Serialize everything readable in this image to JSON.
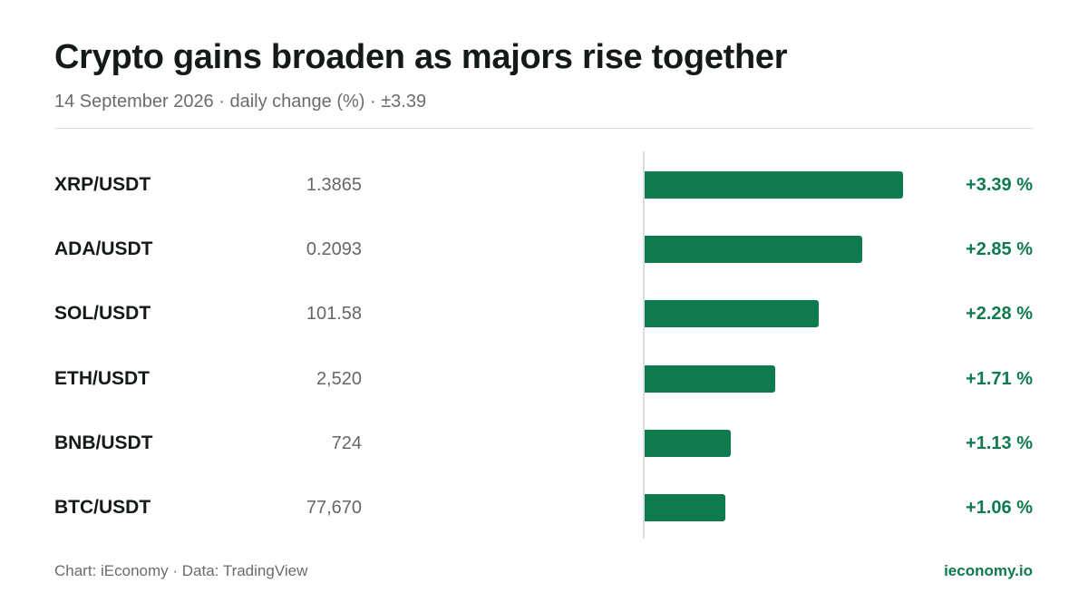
{
  "chart_data": {
    "type": "bar",
    "orientation": "horizontal",
    "title": "Crypto gains broaden as majors rise together",
    "subtitle": "14 September 2026 · daily change (%) · ±3.39",
    "categories": [
      "XRP/USDT",
      "ADA/USDT",
      "SOL/USDT",
      "ETH/USDT",
      "BNB/USDT",
      "BTC/USDT"
    ],
    "prices": [
      "1.3865",
      "0.2093",
      "101.58",
      "2,520",
      "724",
      "77,670"
    ],
    "values": [
      3.39,
      2.85,
      2.28,
      1.71,
      1.13,
      1.06
    ],
    "value_labels": [
      "+3.39 %",
      "+2.85 %",
      "+2.28 %",
      "+1.71 %",
      "+1.13 %",
      "+1.06 %"
    ],
    "xlim": [
      0,
      3.39
    ],
    "bar_color": "#0e7a4e",
    "grid": false,
    "legend": "none"
  },
  "footer": {
    "credit": "Chart: iEconomy · Data: TradingView",
    "brand": "ieconomy.io"
  }
}
